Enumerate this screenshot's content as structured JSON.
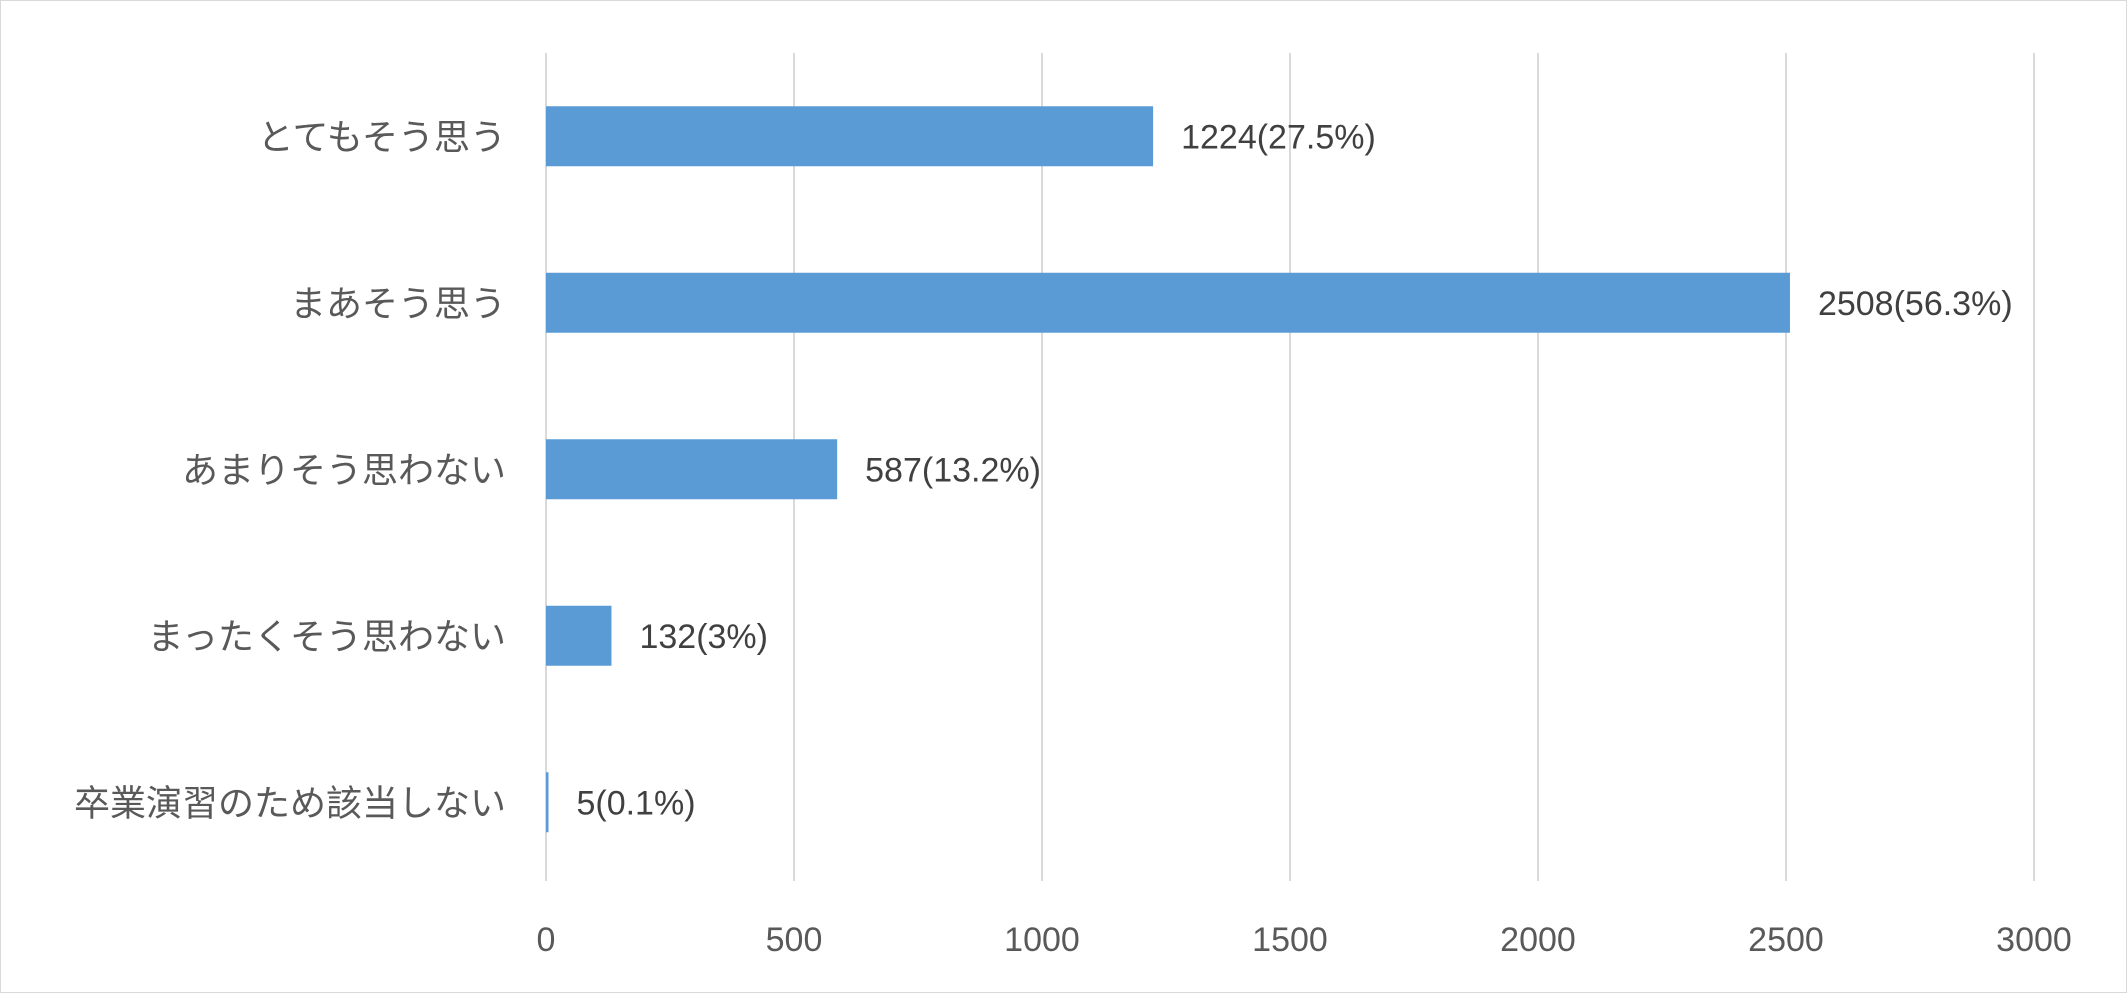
{
  "chart_data": {
    "type": "bar",
    "orientation": "horizontal",
    "categories": [
      "とてもそう思う",
      "まあそう思う",
      "あまりそう思わない",
      "まったくそう思わない",
      "卒業演習のため該当しない"
    ],
    "values": [
      1224,
      2508,
      587,
      132,
      5
    ],
    "data_labels": [
      "1224(27.5%)",
      "2508(56.3%)",
      "587(13.2%)",
      "132(3%)",
      "5(0.1%)"
    ],
    "xlim": [
      0,
      3000
    ],
    "x_ticks": [
      0,
      500,
      1000,
      1500,
      2000,
      2500,
      3000
    ],
    "x_tick_labels": [
      "0",
      "500",
      "1000",
      "1500",
      "2000",
      "2500",
      "3000"
    ],
    "grid": "vertical",
    "legend": "none",
    "bar_color": "#5b9bd5",
    "grid_color": "#d9d9d9"
  }
}
